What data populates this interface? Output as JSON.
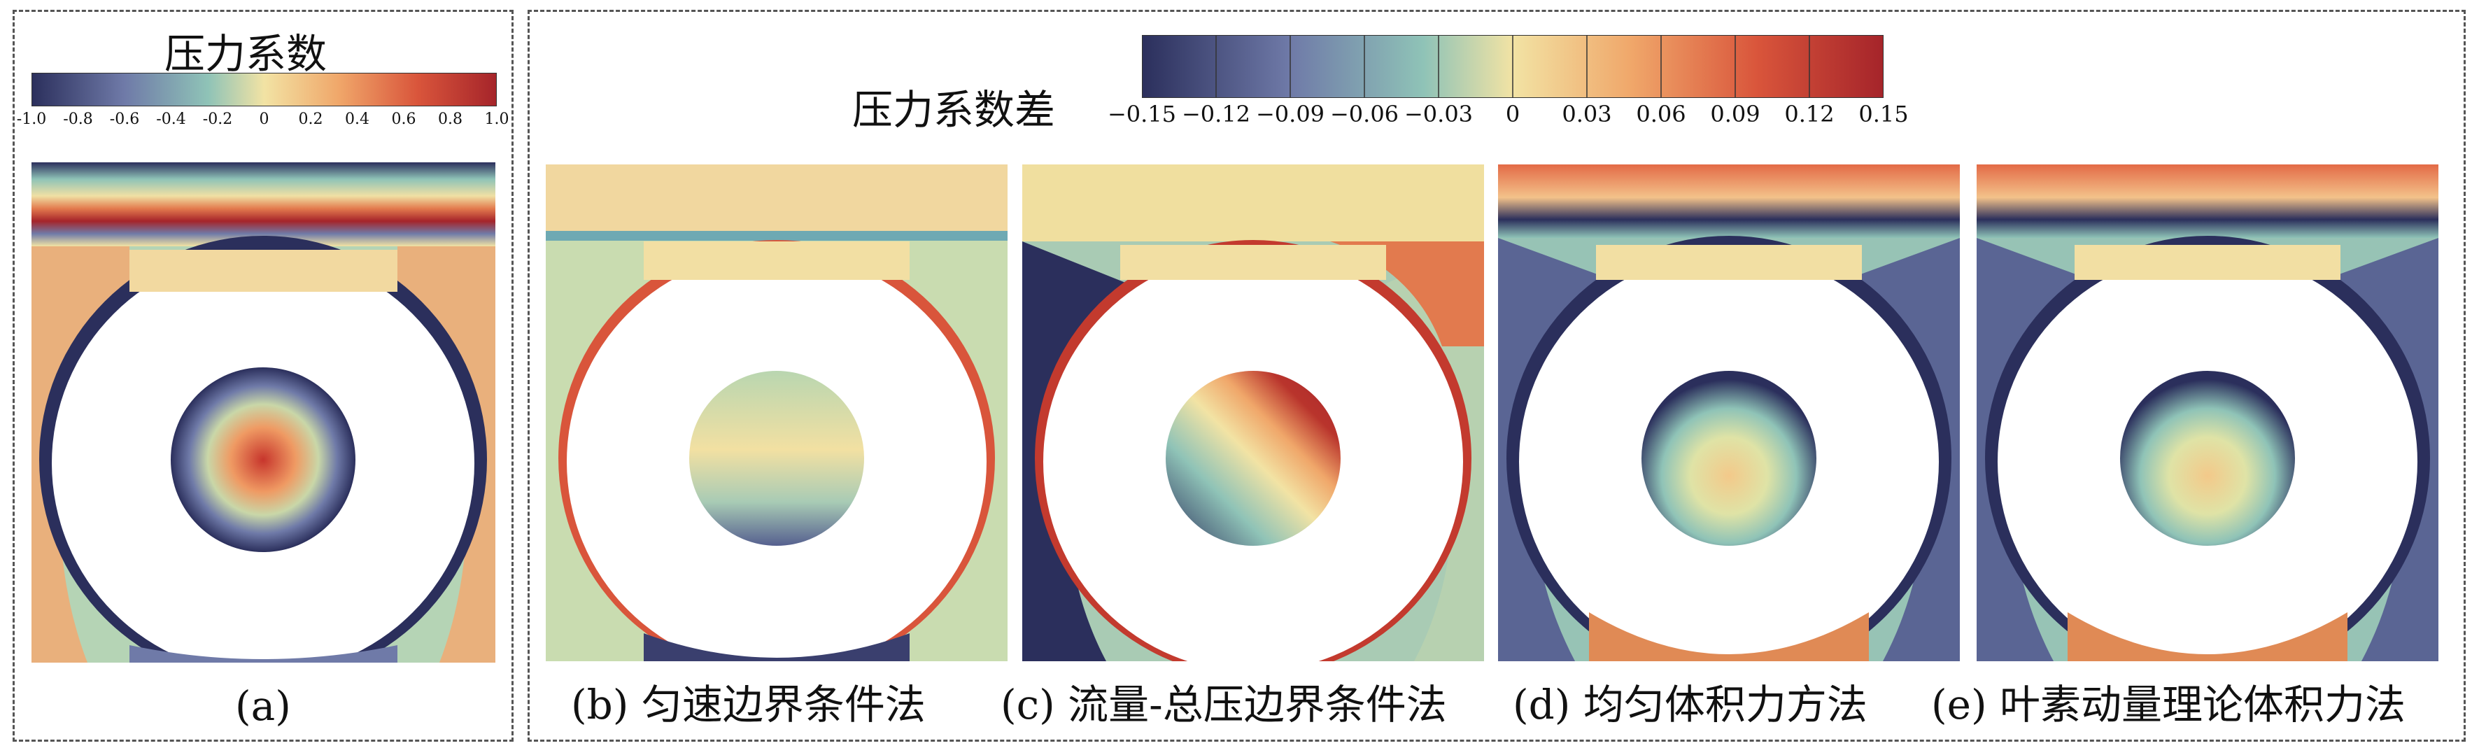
{
  "panel_a": {
    "colorbar_title": "压力系数",
    "ticks": [
      "-1.0",
      "-0.8",
      "-0.6",
      "-0.4",
      "-0.2",
      "0",
      "0.2",
      "0.4",
      "0.6",
      "0.8",
      "1.0"
    ],
    "caption": "(a)"
  },
  "panel_diff": {
    "colorbar_title": "压力系数差",
    "ticks": [
      "−0.15",
      "−0.12",
      "−0.09",
      "−0.06",
      "−0.03",
      "0",
      "0.03",
      "0.06",
      "0.09",
      "0.12",
      "0.15"
    ],
    "captions": {
      "b": "(b) 匀速边界条件法",
      "c": "(c) 流量-总压边界条件法",
      "d": "(d) 均匀体积力方法",
      "e": "(e) 叶素动量理论体积力法"
    }
  },
  "colormap": [
    "#2b2f5c",
    "#6f7aa8",
    "#8fc3b7",
    "#f2e3a4",
    "#f0a76a",
    "#d9553b",
    "#a5242a"
  ]
}
